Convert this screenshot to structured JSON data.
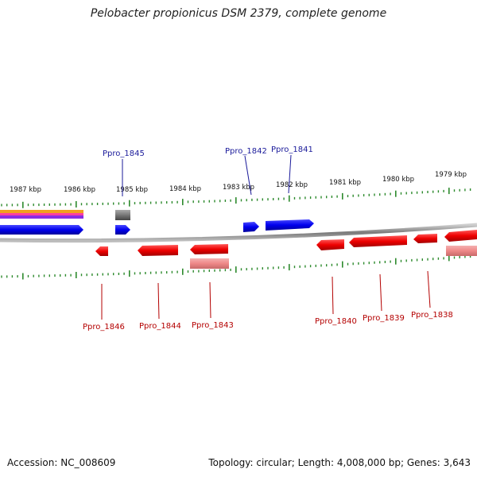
{
  "title": "Pelobacter propionicus DSM 2379, complete genome",
  "footer": {
    "accession": "Accession: NC_008609",
    "summary": "Topology: circular; Length: 4,008,000 bp; Genes: 3,643"
  },
  "colors": {
    "forward": "#0000ee",
    "reverse": "#ee0000",
    "reverse_light": "#ee8888",
    "backbone": "#888888",
    "ticks": "#2d8a2d",
    "forward_label": "#1a1a9a",
    "reverse_label": "#b40000"
  },
  "scale_labels": [
    "1987 kbp",
    "1986 kbp",
    "1985 kbp",
    "1984 kbp",
    "1983 kbp",
    "1982 kbp",
    "1981 kbp",
    "1980 kbp",
    "1979 kbp"
  ],
  "forward_genes": [
    {
      "label": "Ppro_1845"
    },
    {
      "label": "Ppro_1842"
    },
    {
      "label": "Ppro_1841"
    }
  ],
  "reverse_genes": [
    {
      "label": "Ppro_1846"
    },
    {
      "label": "Ppro_1844"
    },
    {
      "label": "Ppro_1843"
    },
    {
      "label": "Ppro_1840"
    },
    {
      "label": "Ppro_1839"
    },
    {
      "label": "Ppro_1838"
    }
  ]
}
